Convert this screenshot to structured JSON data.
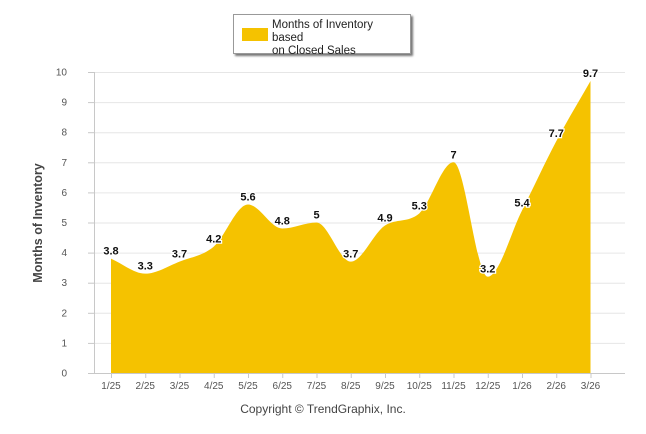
{
  "chart_data": {
    "type": "area",
    "title": "",
    "xlabel": "",
    "ylabel": "Months of Inventory",
    "ylim": [
      0,
      10
    ],
    "yticks": [
      0,
      1,
      2,
      3,
      4,
      5,
      6,
      7,
      8,
      9,
      10
    ],
    "categories": [
      "1/25",
      "2/25",
      "3/25",
      "4/25",
      "5/25",
      "6/25",
      "7/25",
      "8/25",
      "9/25",
      "10/25",
      "11/25",
      "12/25",
      "1/26",
      "2/26",
      "3/26"
    ],
    "series": [
      {
        "name": "Months of Inventory based on Closed Sales",
        "values": [
          3.8,
          3.3,
          3.7,
          4.2,
          5.6,
          4.8,
          5,
          3.7,
          4.9,
          5.3,
          7,
          3.2,
          5.4,
          7.7,
          9.7
        ],
        "labels": [
          "3.8",
          "3.3",
          "3.7",
          "4.2",
          "5.6",
          "4.8",
          "5",
          "3.7",
          "4.9",
          "5.3",
          "7",
          "3.2",
          "5.4",
          "7.7",
          "9.7"
        ],
        "color": "#F5C200"
      }
    ],
    "legend": {
      "position": "top-center",
      "line1": "Months of Inventory based",
      "line2": "on Closed Sales"
    },
    "grid": true
  },
  "footer": {
    "copyright": "Copyright © TrendGraphix, Inc."
  },
  "colors": {
    "area": "#F5C200",
    "grid": "#e6e6e6",
    "axis": "#c8c8c8"
  }
}
